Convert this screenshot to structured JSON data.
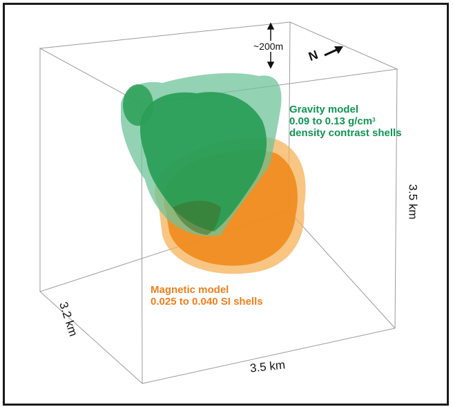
{
  "labels": {
    "scale": "~200m",
    "north": "N",
    "gravity_line1": "Gravity model",
    "gravity_line2": "0.09 to 0.13 g/cm",
    "gravity_sup": "3",
    "gravity_line3": "density contrast shells",
    "magnetic_line1": "Magnetic model",
    "magnetic_line2": "0.025 to 0.040 SI shells",
    "dim_bottom": "3.5 km",
    "dim_right": "3.5 km",
    "dim_left": "3.2 km"
  },
  "colors": {
    "gravity": "#119455",
    "magnetic": "#f07f1e",
    "gravity_shell": "#2e9e5a",
    "magnetic_shell": "#f39a2a"
  }
}
